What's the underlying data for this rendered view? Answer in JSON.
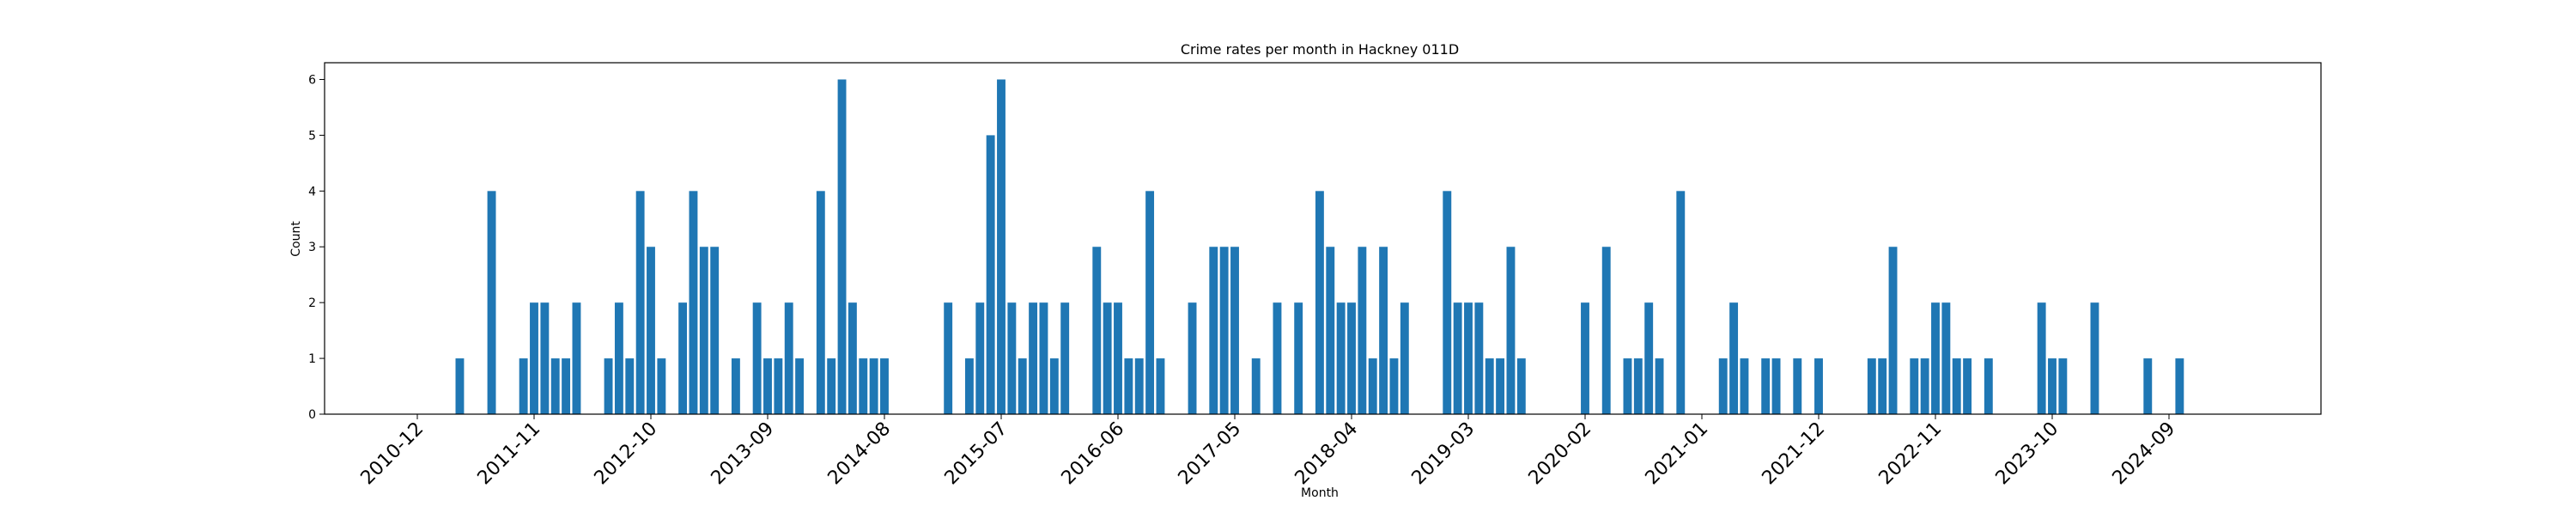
{
  "chart_data": {
    "type": "bar",
    "title": "Crime rates per month in Hackney 011D",
    "xlabel": "Month",
    "ylabel": "Count",
    "ylim": [
      0,
      6.3
    ],
    "yticks": [
      0,
      1,
      2,
      3,
      4,
      5,
      6
    ],
    "xticks": [
      "2010-12",
      "2011-11",
      "2012-10",
      "2013-09",
      "2014-08",
      "2015-07",
      "2016-06",
      "2017-05",
      "2018-04",
      "2019-03",
      "2020-02",
      "2021-01",
      "2021-12",
      "2022-11",
      "2023-10",
      "2024-09"
    ],
    "bar_color": "#1f77b4",
    "grid": false,
    "categories": [
      "2011-04",
      "2011-07",
      "2011-10",
      "2011-11",
      "2011-12",
      "2012-01",
      "2012-02",
      "2012-03",
      "2012-06",
      "2012-07",
      "2012-08",
      "2012-09",
      "2012-10",
      "2012-11",
      "2013-01",
      "2013-02",
      "2013-03",
      "2013-04",
      "2013-06",
      "2013-08",
      "2013-09",
      "2013-10",
      "2013-11",
      "2013-12",
      "2014-02",
      "2014-03",
      "2014-04",
      "2014-05",
      "2014-06",
      "2014-07",
      "2014-08",
      "2015-02",
      "2015-04",
      "2015-05",
      "2015-06",
      "2015-07",
      "2015-08",
      "2015-09",
      "2015-10",
      "2015-11",
      "2015-12",
      "2016-01",
      "2016-04",
      "2016-05",
      "2016-06",
      "2016-07",
      "2016-08",
      "2016-09",
      "2016-10",
      "2017-01",
      "2017-03",
      "2017-04",
      "2017-05",
      "2017-07",
      "2017-09",
      "2017-11",
      "2018-01",
      "2018-02",
      "2018-03",
      "2018-04",
      "2018-05",
      "2018-06",
      "2018-07",
      "2018-08",
      "2018-09",
      "2019-01",
      "2019-02",
      "2019-03",
      "2019-04",
      "2019-05",
      "2019-06",
      "2019-07",
      "2019-08",
      "2020-02",
      "2020-04",
      "2020-06",
      "2020-07",
      "2020-08",
      "2020-09",
      "2020-11",
      "2021-03",
      "2021-04",
      "2021-05",
      "2021-07",
      "2021-08",
      "2021-10",
      "2021-12",
      "2022-05",
      "2022-06",
      "2022-07",
      "2022-09",
      "2022-10",
      "2022-11",
      "2022-12",
      "2023-01",
      "2023-02",
      "2023-04",
      "2023-09",
      "2023-10",
      "2023-11",
      "2024-02",
      "2024-07",
      "2024-10"
    ],
    "values": [
      1,
      4,
      1,
      2,
      2,
      1,
      1,
      2,
      1,
      2,
      1,
      4,
      3,
      1,
      2,
      4,
      3,
      3,
      1,
      2,
      1,
      1,
      2,
      1,
      4,
      1,
      6,
      2,
      1,
      1,
      1,
      2,
      1,
      2,
      5,
      6,
      2,
      1,
      2,
      2,
      1,
      2,
      3,
      2,
      2,
      1,
      1,
      4,
      1,
      2,
      3,
      3,
      3,
      1,
      2,
      2,
      4,
      3,
      2,
      2,
      3,
      1,
      3,
      1,
      2,
      4,
      2,
      2,
      2,
      1,
      1,
      3,
      1,
      2,
      3,
      1,
      1,
      2,
      1,
      4,
      1,
      2,
      1,
      1,
      1,
      1,
      1,
      1,
      1,
      3,
      1,
      1,
      2,
      2,
      1,
      1,
      1,
      2,
      1,
      1,
      2,
      1,
      1
    ]
  }
}
